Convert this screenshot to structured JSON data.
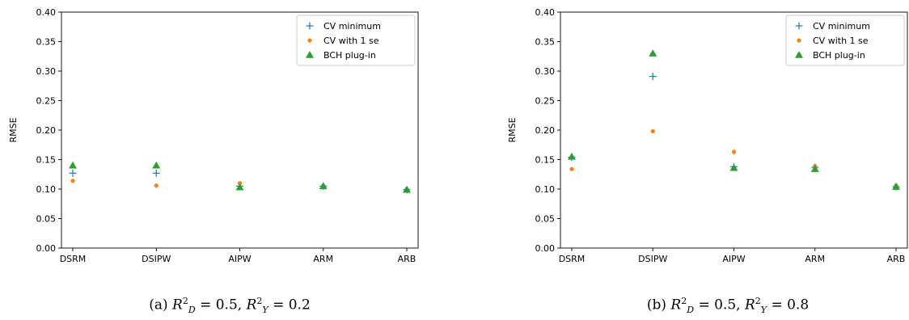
{
  "colors": {
    "cv_minimum": "#1f77b4",
    "cv_1se": "#ff7f0e",
    "bch": "#2ca02c"
  },
  "chart_data": [
    {
      "type": "scatter",
      "categories": [
        "DSRM",
        "DSIPW",
        "AIPW",
        "ARM",
        "ARB"
      ],
      "ylabel": "RMSE",
      "ylim": [
        0,
        0.4
      ],
      "yticks": [
        "0.00",
        "0.05",
        "0.10",
        "0.15",
        "0.20",
        "0.25",
        "0.30",
        "0.35",
        "0.40"
      ],
      "legend_position": "top-right",
      "grid": false,
      "series": [
        {
          "name": "CV minimum",
          "marker": "plus",
          "values": [
            0.127,
            0.127,
            0.105,
            0.105,
            0.099
          ]
        },
        {
          "name": "CV with 1 se",
          "marker": "dot",
          "values": [
            0.114,
            0.106,
            0.11,
            0.106,
            0.1
          ]
        },
        {
          "name": "BCH plug-in",
          "marker": "triangle",
          "values": [
            0.14,
            0.14,
            0.103,
            0.105,
            0.099
          ]
        }
      ],
      "caption": {
        "prefix": "(a)",
        "d_value": "0.5",
        "y_value": "0.2"
      }
    },
    {
      "type": "scatter",
      "categories": [
        "DSRM",
        "DSIPW",
        "AIPW",
        "ARM",
        "ARB"
      ],
      "ylabel": "RMSE",
      "ylim": [
        0,
        0.4
      ],
      "yticks": [
        "0.00",
        "0.05",
        "0.10",
        "0.15",
        "0.20",
        "0.25",
        "0.30",
        "0.35",
        "0.40"
      ],
      "legend_position": "top-right",
      "grid": false,
      "series": [
        {
          "name": "CV minimum",
          "marker": "plus",
          "values": [
            0.154,
            0.291,
            0.138,
            0.137,
            0.104
          ]
        },
        {
          "name": "CV with 1 se",
          "marker": "dot",
          "values": [
            0.134,
            0.198,
            0.163,
            0.139,
            0.106
          ]
        },
        {
          "name": "BCH plug-in",
          "marker": "triangle",
          "values": [
            0.155,
            0.33,
            0.136,
            0.134,
            0.104
          ]
        }
      ],
      "caption": {
        "prefix": "(b)",
        "d_value": "0.5",
        "y_value": "0.8"
      }
    }
  ]
}
